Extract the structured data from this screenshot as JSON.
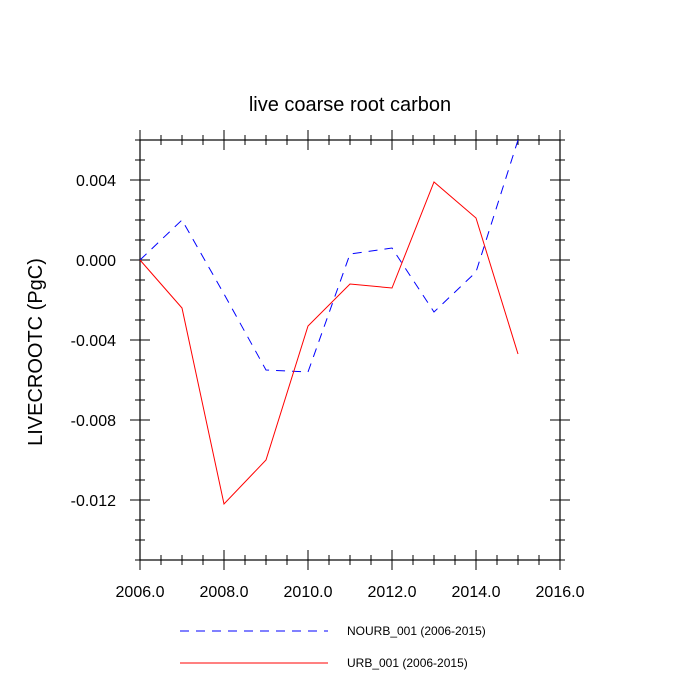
{
  "chart_data": {
    "type": "line",
    "title": "live coarse root carbon",
    "xlabel": "",
    "ylabel": "LIVECROOTC  (PgC)",
    "xlim": [
      2006.0,
      2016.0
    ],
    "ylim": [
      -0.015,
      0.006
    ],
    "x_ticks": [
      2006.0,
      2008.0,
      2010.0,
      2012.0,
      2014.0,
      2016.0
    ],
    "x_tick_labels": [
      "2006.0",
      "2008.0",
      "2010.0",
      "2012.0",
      "2014.0",
      "2016.0"
    ],
    "y_ticks": [
      0.004,
      0.0,
      -0.004,
      -0.008,
      -0.012
    ],
    "y_tick_labels": [
      "0.004",
      "0.000",
      "-0.004",
      "-0.008",
      "-0.012"
    ],
    "x": [
      2006,
      2007,
      2008,
      2009,
      2010,
      2011,
      2012,
      2013,
      2014,
      2015
    ],
    "series": [
      {
        "name": "NOURB_001 (2006-2015)",
        "color": "#0000ff",
        "style": "dashed",
        "values": [
          0.0,
          0.002,
          -0.0017,
          -0.0055,
          -0.0056,
          0.0003,
          0.0006,
          -0.0026,
          -0.0006,
          0.006
        ]
      },
      {
        "name": "URB_001 (2006-2015)",
        "color": "#ff0000",
        "style": "solid",
        "values": [
          0.0,
          -0.0024,
          -0.0122,
          -0.01,
          -0.0033,
          -0.0012,
          -0.0014,
          0.0039,
          0.0021,
          -0.0047
        ]
      }
    ],
    "legend_position": "bottom"
  }
}
